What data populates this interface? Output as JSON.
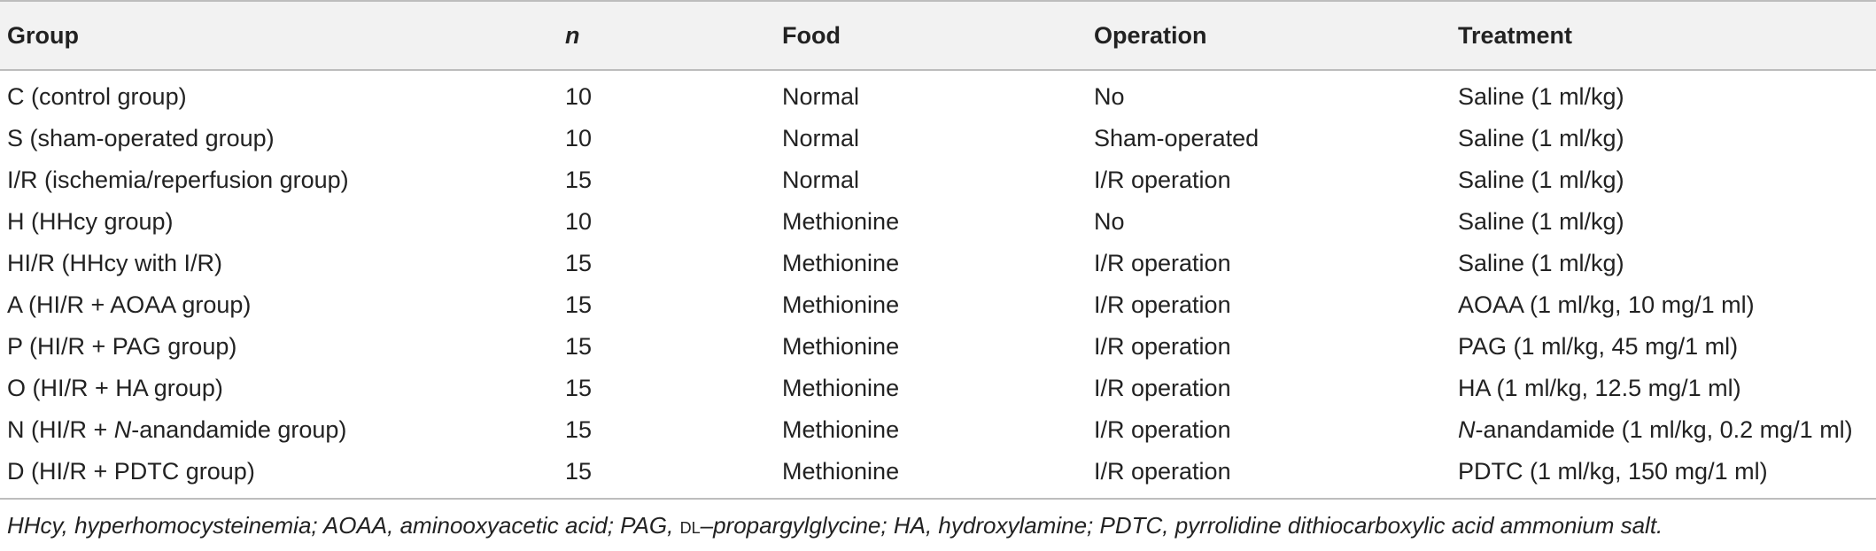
{
  "table": {
    "headers": {
      "group": "Group",
      "n": "n",
      "food": "Food",
      "operation": "Operation",
      "treatment": "Treatment"
    },
    "rows": [
      {
        "group": "C (control group)",
        "n": "10",
        "food": "Normal",
        "operation": "No",
        "treatment": "Saline (1 ml/kg)"
      },
      {
        "group": "S (sham-operated group)",
        "n": "10",
        "food": "Normal",
        "operation": "Sham-operated",
        "treatment": "Saline (1 ml/kg)"
      },
      {
        "group": "I/R (ischemia/reperfusion group)",
        "n": "15",
        "food": "Normal",
        "operation": "I/R operation",
        "treatment": "Saline (1 ml/kg)"
      },
      {
        "group": "H (HHcy group)",
        "n": "10",
        "food": "Methionine",
        "operation": "No",
        "treatment": "Saline (1 ml/kg)"
      },
      {
        "group": "HI/R (HHcy with I/R)",
        "n": "15",
        "food": "Methionine",
        "operation": "I/R operation",
        "treatment": "Saline (1 ml/kg)"
      },
      {
        "group": "A (HI/R + AOAA group)",
        "n": "15",
        "food": "Methionine",
        "operation": "I/R operation",
        "treatment": "AOAA (1 ml/kg, 10 mg/1 ml)"
      },
      {
        "group": "P (HI/R + PAG group)",
        "n": "15",
        "food": "Methionine",
        "operation": "I/R operation",
        "treatment": "PAG (1 ml/kg, 45 mg/1 ml)"
      },
      {
        "group": "O (HI/R + HA group)",
        "n": "15",
        "food": "Methionine",
        "operation": "I/R operation",
        "treatment": "HA (1 ml/kg, 12.5 mg/1 ml)"
      },
      {
        "group_prefix": "N (HI/R + ",
        "group_italic": "N",
        "group_suffix": "-anandamide group)",
        "n": "15",
        "food": "Methionine",
        "operation": "I/R operation",
        "treatment_italic": "N",
        "treatment_suffix": "-anandamide (1 ml/kg, 0.2 mg/1 ml)"
      },
      {
        "group": "D (HI/R + PDTC group)",
        "n": "15",
        "food": "Methionine",
        "operation": "I/R operation",
        "treatment": "PDTC (1 ml/kg, 150 mg/1 ml)"
      }
    ]
  },
  "footnote": {
    "part1": "HHcy, hyperhomocysteinemia; AOAA, aminooxyacetic acid; PAG, ",
    "smallcaps": "DL",
    "part2": "–propargylglycine; HA, hydroxylamine; PDTC, pyrrolidine dithiocarboxylic acid ammonium salt."
  }
}
